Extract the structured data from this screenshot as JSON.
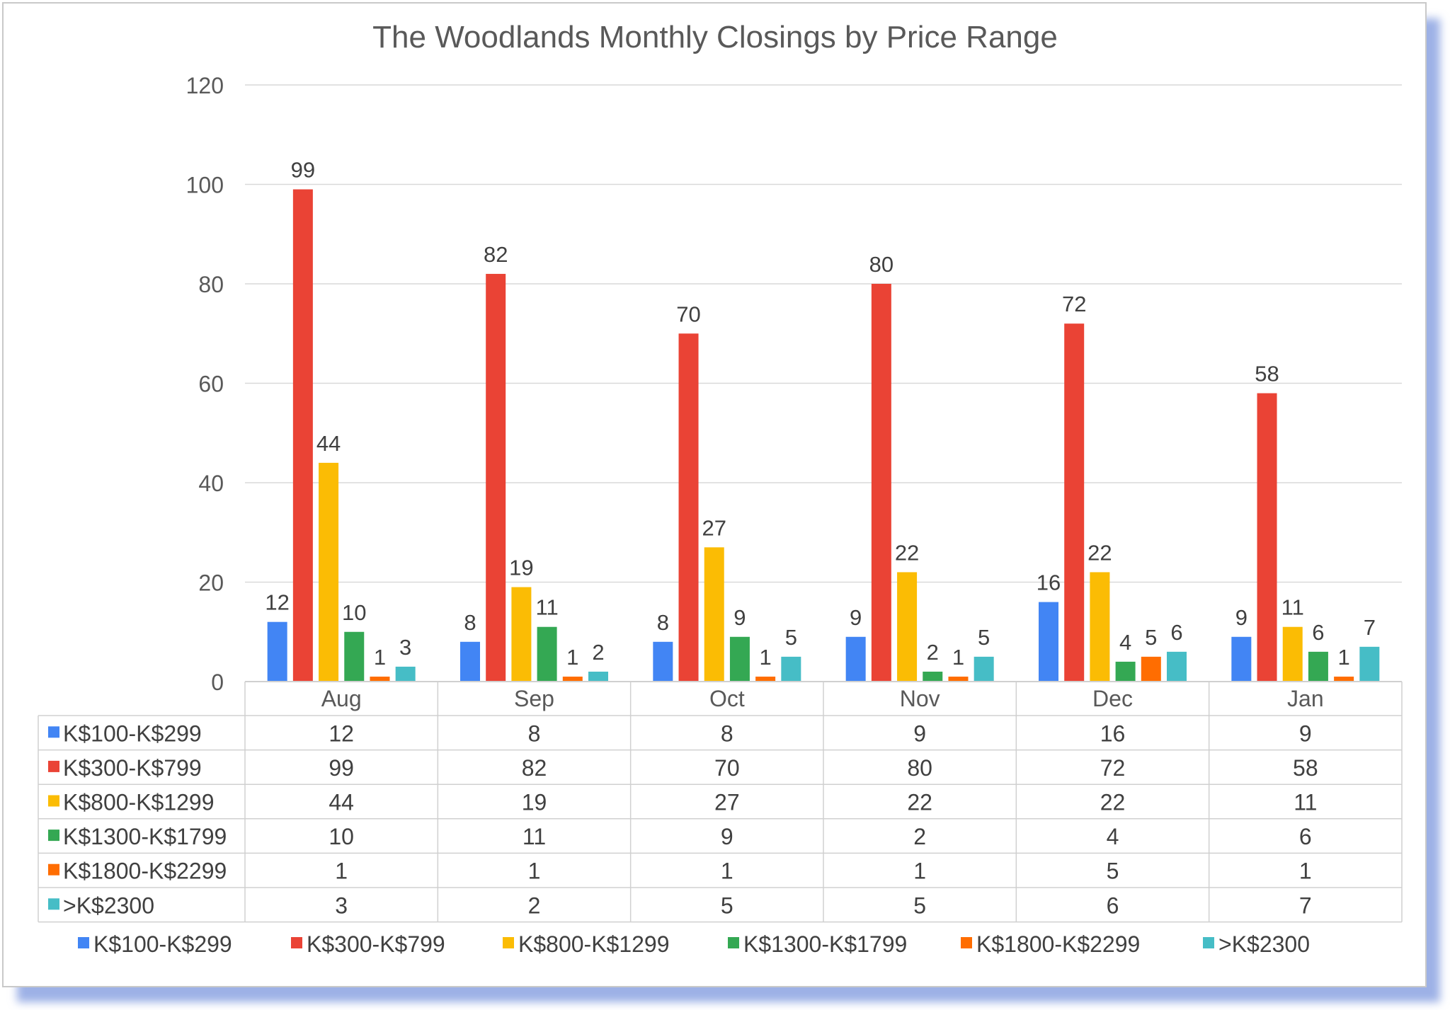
{
  "chart_data": {
    "type": "bar",
    "title": "The Woodlands Monthly Closings by Price Range",
    "xlabel": "",
    "ylabel": "",
    "ylim": [
      0,
      120
    ],
    "yticks": [
      0,
      20,
      40,
      60,
      80,
      100,
      120
    ],
    "grid": true,
    "legend_position": "bottom",
    "data_table": true,
    "categories": [
      "Aug",
      "Sep",
      "Oct",
      "Nov",
      "Dec",
      "Jan"
    ],
    "series": [
      {
        "name": "K$100-K$299",
        "color": "#4285F4",
        "values": [
          12,
          8,
          8,
          9,
          16,
          9
        ]
      },
      {
        "name": "K$300-K$799",
        "color": "#EA4335",
        "values": [
          99,
          82,
          70,
          80,
          72,
          58
        ]
      },
      {
        "name": "K$800-K$1299",
        "color": "#FBBC04",
        "values": [
          44,
          19,
          27,
          22,
          22,
          11
        ]
      },
      {
        "name": "K$1300-K$1799",
        "color": "#34A853",
        "values": [
          10,
          11,
          9,
          2,
          4,
          6
        ]
      },
      {
        "name": "K$1800-K$2299",
        "color": "#FF6D01",
        "values": [
          1,
          1,
          1,
          1,
          5,
          1
        ]
      },
      {
        "name": ">K$2300",
        "color": "#46BDC6",
        "values": [
          3,
          2,
          5,
          5,
          6,
          7
        ]
      }
    ]
  }
}
